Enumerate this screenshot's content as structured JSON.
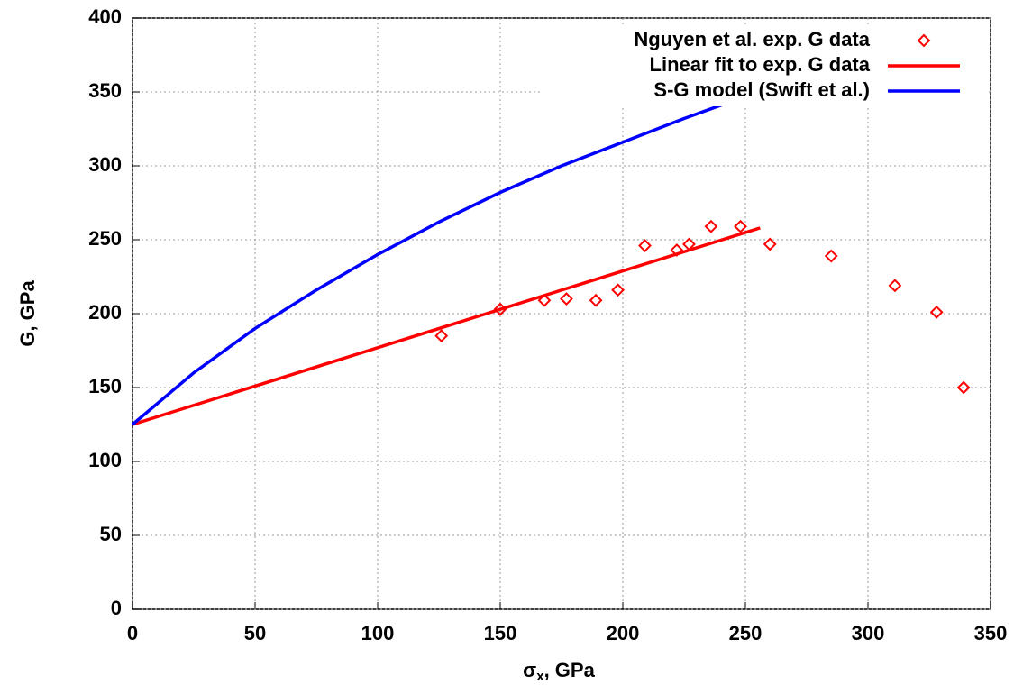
{
  "chart_data": {
    "type": "line",
    "xlabel": {
      "symbol": "σ",
      "subscript": "x",
      "suffix": ", GPa"
    },
    "ylabel": "G, GPa",
    "xlim": [
      0,
      350
    ],
    "xticks": [
      0,
      50,
      100,
      150,
      200,
      250,
      300,
      350
    ],
    "ylim": [
      0,
      400
    ],
    "yticks": [
      0,
      50,
      100,
      150,
      200,
      250,
      300,
      350,
      400
    ],
    "grid": true,
    "legend": "top-right",
    "series": [
      {
        "name": "Nguyen et al. exp. G data",
        "color": "#ff0000",
        "marker": "diamond",
        "x": [
          126,
          150,
          168,
          177,
          189,
          198,
          209,
          222,
          227,
          236,
          248,
          260,
          285,
          311,
          328,
          339
        ],
        "values": [
          185,
          203,
          209,
          210,
          209,
          216,
          246,
          243,
          247,
          259,
          259,
          247,
          239,
          219,
          201,
          150
        ]
      },
      {
        "name": "Linear fit to exp. G data",
        "color": "#ff0000",
        "marker": "line",
        "x": [
          0,
          256
        ],
        "values": [
          125,
          258
        ]
      },
      {
        "name": "S-G model (Swift et al.)",
        "color": "#0000ff",
        "marker": "line",
        "x": [
          0,
          25,
          50,
          75,
          100,
          125,
          150,
          175,
          200,
          225,
          250,
          256
        ],
        "values": [
          125,
          160,
          190,
          216,
          240,
          262,
          282,
          300,
          316,
          332,
          347,
          350
        ]
      }
    ]
  }
}
